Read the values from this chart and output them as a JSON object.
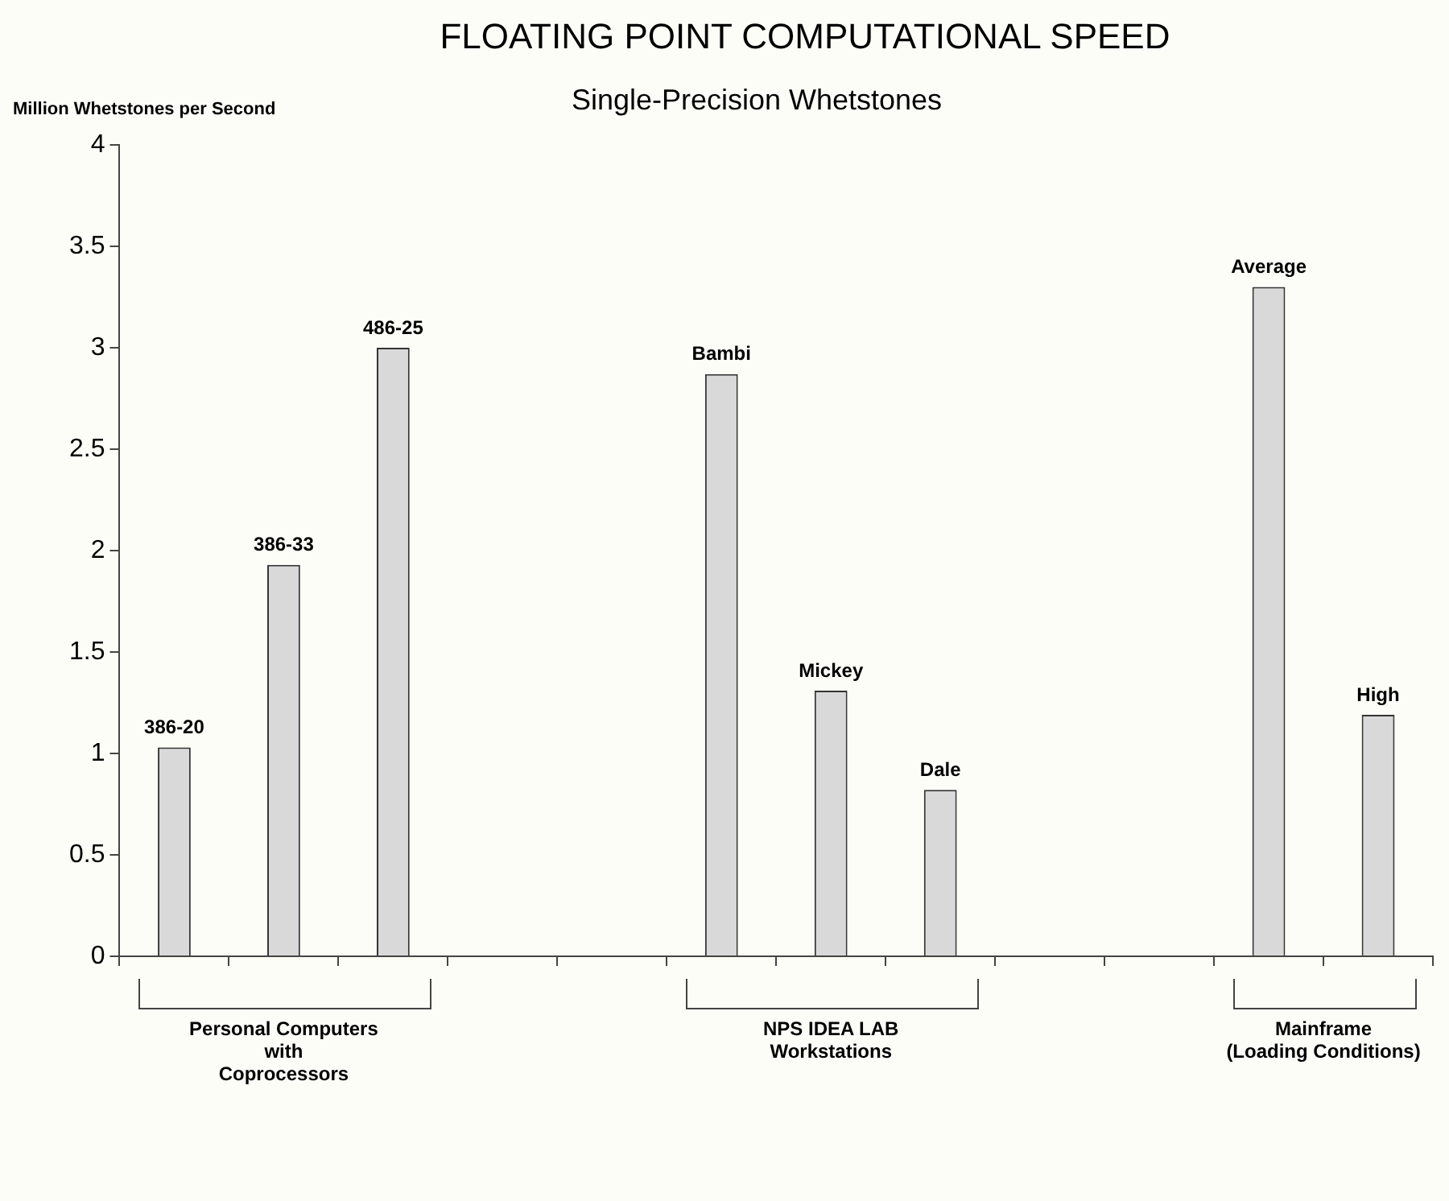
{
  "chart_data": {
    "type": "bar",
    "title": "FLOATING POINT COMPUTATIONAL SPEED",
    "subtitle": "Single-Precision Whetstones",
    "ylabel": "Million Whetstones per Second",
    "categories": [
      "386-20",
      "386-33",
      "486-25",
      null,
      null,
      "Bambi",
      "Mickey",
      "Dale",
      null,
      null,
      "Average",
      "High"
    ],
    "values": [
      1.03,
      1.93,
      3.0,
      null,
      null,
      2.87,
      1.31,
      0.82,
      null,
      null,
      3.3,
      1.19
    ],
    "color": "#d9d9d9",
    "ylim": [
      0,
      4
    ],
    "yticks": [
      0,
      0.5,
      1,
      1.5,
      2,
      2.5,
      3,
      3.5,
      4
    ],
    "grid": false,
    "legend": false,
    "tick_labels": "y",
    "annotations": [
      "Personal Computers\nwith\nCoprocessors",
      "NPS IDEA LAB\nWorkstations",
      "Mainframe\n(Loading Conditions)"
    ]
  }
}
